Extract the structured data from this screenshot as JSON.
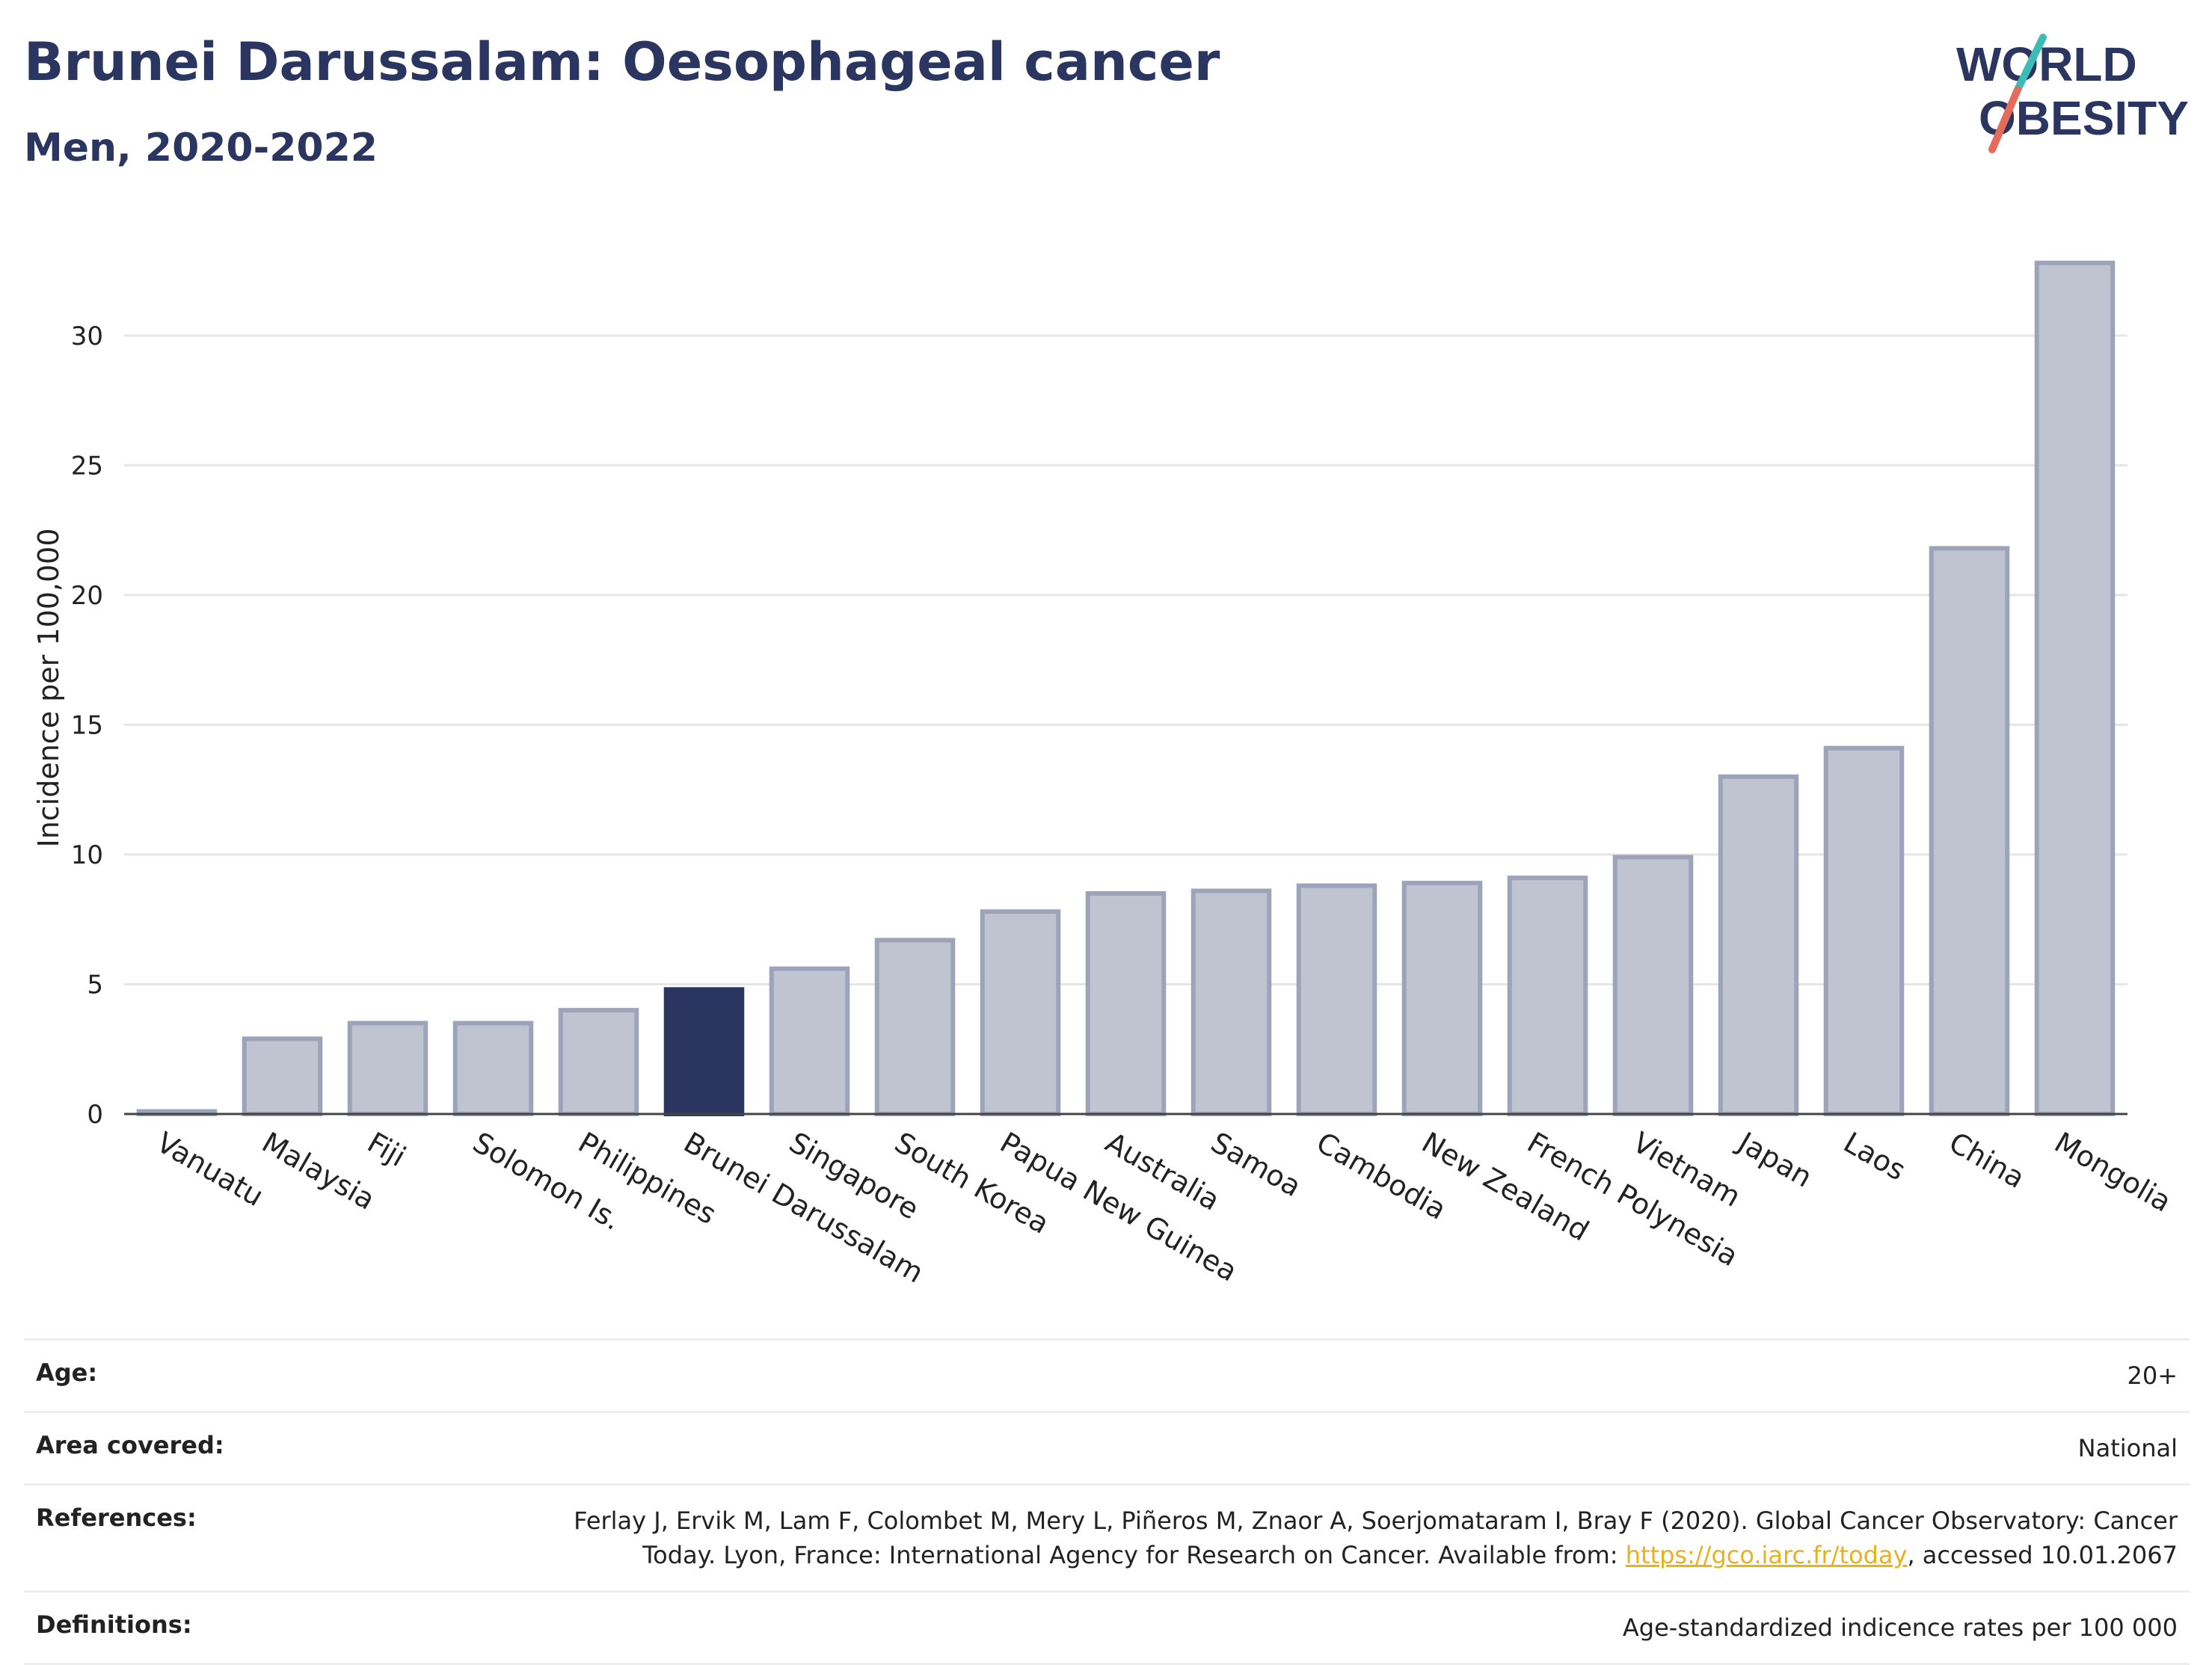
{
  "header": {
    "title": "Brunei Darussalam: Oesophageal cancer",
    "subtitle": "Men, 2020-2022"
  },
  "logo": {
    "line1": "WORLD",
    "line2": "OBESITY"
  },
  "colors": {
    "highlight_bar": "#2a3560",
    "other_bar": "#c0c3d0",
    "other_bar_border": "#9da3b9",
    "logo_text": "#2a3560",
    "logo_teal": "#3cbcb4",
    "logo_red": "#e46c5c",
    "link": "#e9b11c"
  },
  "chart_data": {
    "type": "bar",
    "highlight": "Brunei Darussalam",
    "categories": [
      "Vanuatu",
      "Malaysia",
      "Fiji",
      "Solomon Is.",
      "Philippines",
      "Brunei Darussalam",
      "Singapore",
      "South Korea",
      "Papua New Guinea",
      "Australia",
      "Samoa",
      "Cambodia",
      "New Zealand",
      "French Polynesia",
      "Vietnam",
      "Japan",
      "Laos",
      "China",
      "Mongolia"
    ],
    "values": [
      0.1,
      2.9,
      3.5,
      3.5,
      4.0,
      4.8,
      5.6,
      6.7,
      7.8,
      8.5,
      8.6,
      8.8,
      8.9,
      9.1,
      9.9,
      13.0,
      14.1,
      21.8,
      32.8
    ],
    "ylabel": "Incidence per 100,000",
    "xlabel": "",
    "ylim": [
      0,
      34
    ],
    "yticks": [
      0,
      5,
      10,
      15,
      20,
      25,
      30
    ],
    "grid": true
  },
  "details": [
    {
      "label": "Age:",
      "value": "20+"
    },
    {
      "label": "Area covered:",
      "value": "National"
    },
    {
      "label": "References:",
      "value_pre": "Ferlay J, Ervik M, Lam F, Colombet M, Mery L, Piñeros M, Znaor A, Soerjomataram I, Bray F (2020). Global Cancer Observatory: Cancer Today. Lyon, France: International Agency for Research on Cancer. Available from: ",
      "link": "https://gco.iarc.fr/today",
      "value_post": ", accessed 10.01.2067"
    },
    {
      "label": "Definitions:",
      "value": "Age-standardized indicence rates per 100 000"
    }
  ]
}
